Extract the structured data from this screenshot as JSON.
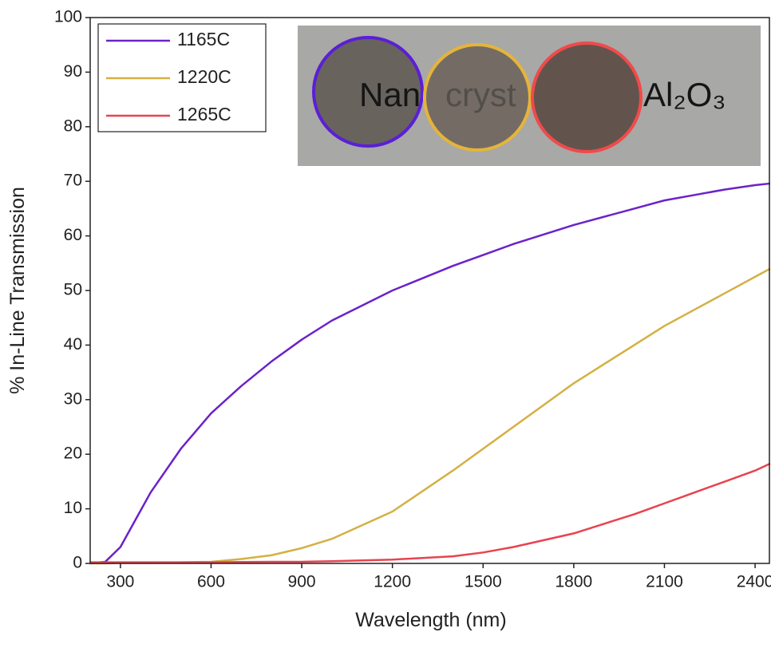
{
  "chart_data": {
    "type": "line",
    "x_label": "Wavelength (nm)",
    "y_label": "% In-Line Transmission",
    "x": [
      200,
      250,
      300,
      350,
      400,
      500,
      600,
      700,
      800,
      900,
      1000,
      1200,
      1400,
      1500,
      1600,
      1800,
      2000,
      2100,
      2200,
      2300,
      2400,
      2450
    ],
    "series": [
      {
        "name": "1165C",
        "color": "#6b22c9",
        "values": [
          0,
          0.3,
          3,
          8,
          13,
          21,
          27.5,
          32.5,
          37,
          41,
          44.5,
          50,
          54.5,
          56.5,
          58.5,
          62,
          65,
          66.5,
          67.5,
          68.5,
          69.3,
          69.6
        ]
      },
      {
        "name": "1220C",
        "color": "#d4b044",
        "values": [
          0,
          0,
          0.1,
          0.1,
          0.1,
          0.2,
          0.3,
          0.8,
          1.5,
          2.8,
          4.5,
          9.5,
          17,
          21,
          25,
          33,
          40,
          43.5,
          46.5,
          49.5,
          52.5,
          54
        ]
      },
      {
        "name": "1265C",
        "color": "#e8434f",
        "values": [
          0.2,
          0.2,
          0.2,
          0.2,
          0.2,
          0.2,
          0.2,
          0.25,
          0.3,
          0.3,
          0.4,
          0.7,
          1.3,
          2,
          3,
          5.5,
          9,
          11,
          13,
          15,
          17,
          18.3
        ]
      }
    ],
    "xlim": [
      200,
      2450
    ],
    "ylim": [
      0,
      100
    ],
    "xticks": [
      300,
      600,
      900,
      1200,
      1500,
      1800,
      2100,
      2400
    ],
    "yticks": [
      0,
      10,
      20,
      30,
      40,
      50,
      60,
      70,
      80,
      90,
      100
    ],
    "legend": "upper left",
    "inset_texts": [
      "Nan",
      "cryst",
      "Al₂O₃"
    ]
  }
}
